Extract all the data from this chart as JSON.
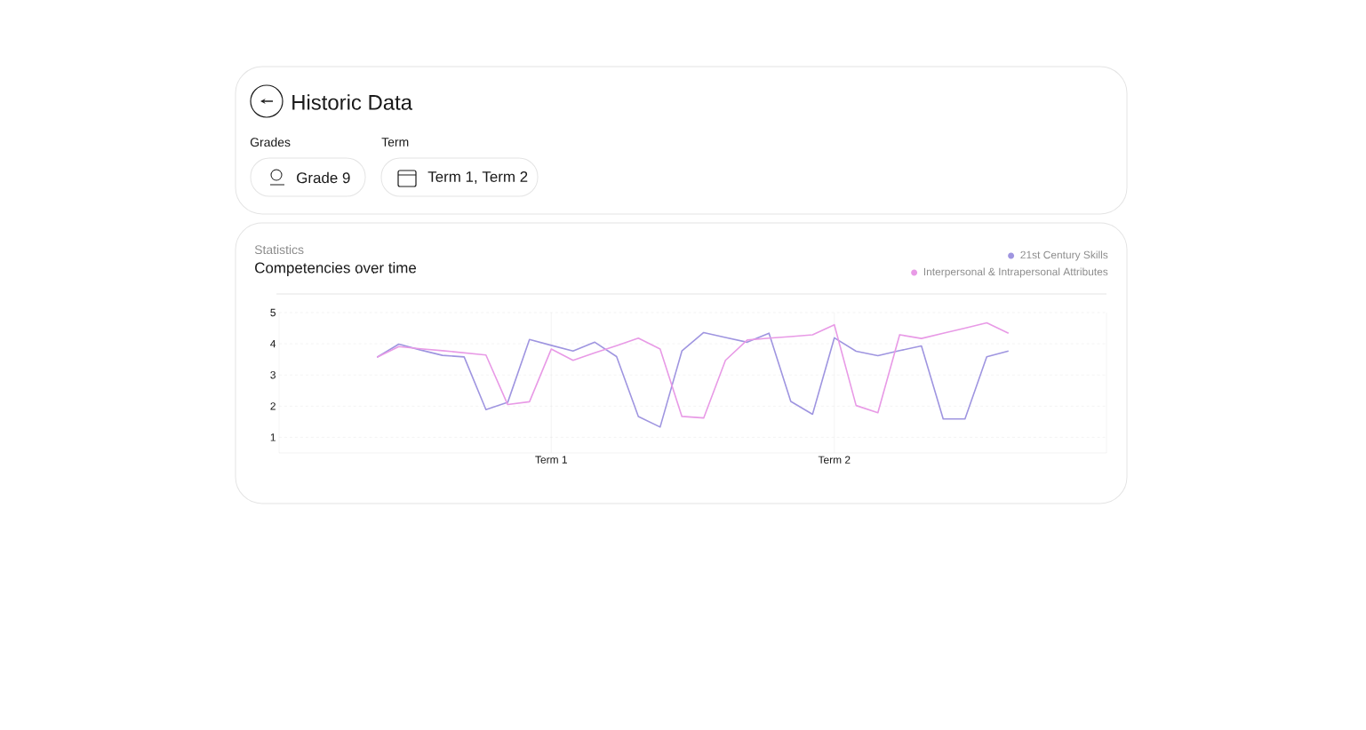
{
  "chart_data": {
    "type": "line",
    "title": "Competencies over time",
    "subtitle": "Statistics",
    "annotations": [
      "Historic Data",
      "Grades",
      "Grade 9",
      "Term",
      "Term 1, Term 2"
    ],
    "categories": [
      null,
      null,
      null,
      null,
      null,
      null,
      null,
      null,
      null,
      null,
      null,
      null,
      "Term 1",
      null,
      null,
      null,
      null,
      null,
      null,
      null,
      null,
      null,
      null,
      null,
      null,
      "Term 2",
      null,
      null,
      null,
      null,
      null,
      null,
      null,
      null,
      null,
      null,
      null,
      null
    ],
    "ylim": [
      0.5,
      5
    ],
    "yticks": [
      1,
      2,
      3,
      4,
      5
    ],
    "grid": true,
    "legend": "top right",
    "marker": "none",
    "line_style": "solid",
    "series": [
      {
        "name": "21st Century Skills",
        "color": "#9f95e0",
        "values": [
          null,
          null,
          null,
          null,
          3.57,
          3.99,
          3.8,
          3.63,
          3.58,
          1.89,
          2.12,
          4.14,
          3.95,
          3.77,
          4.05,
          3.59,
          1.67,
          1.33,
          3.77,
          4.36,
          4.2,
          4.05,
          4.34,
          2.15,
          1.74,
          4.19,
          3.76,
          3.62,
          3.78,
          3.93,
          1.59,
          1.59,
          3.58,
          3.77,
          null,
          null,
          null,
          null
        ]
      },
      {
        "name": "Interpersonal & Intrapersonal Attributes",
        "color": "#e89ae6",
        "values": [
          null,
          null,
          null,
          null,
          3.57,
          3.91,
          3.84,
          3.78,
          3.71,
          3.64,
          2.05,
          2.14,
          3.83,
          3.47,
          3.71,
          3.94,
          4.18,
          3.83,
          1.67,
          1.62,
          3.47,
          4.12,
          4.18,
          4.23,
          4.29,
          4.61,
          2.02,
          1.79,
          4.29,
          4.17,
          4.34,
          4.5,
          4.67,
          4.34,
          null,
          null,
          null,
          null
        ]
      }
    ]
  }
}
